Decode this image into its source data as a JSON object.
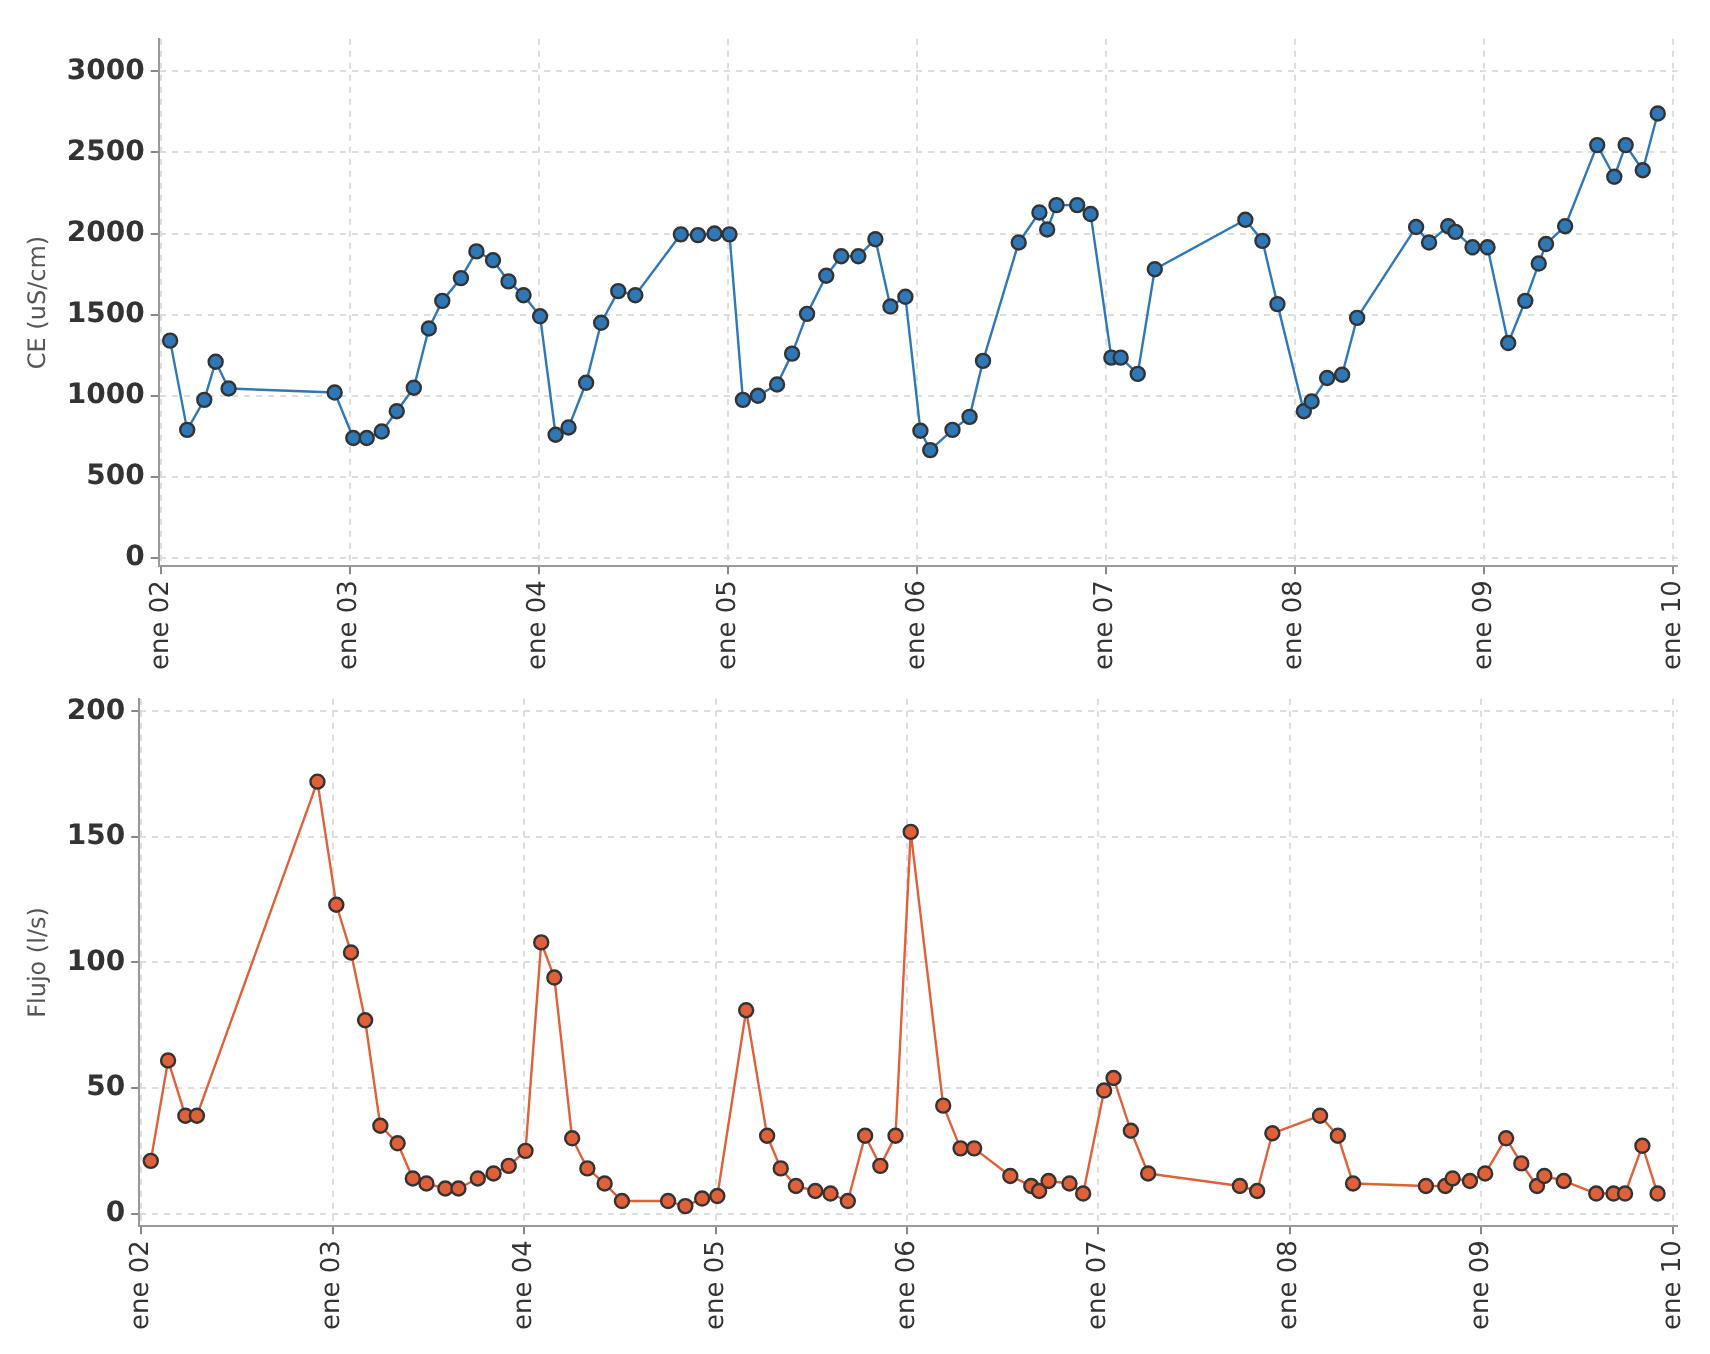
{
  "chart_data": [
    {
      "type": "line",
      "ylabel": "CE (uS/cm)",
      "marker": "circle",
      "line_style": "solid",
      "grid": true,
      "legend": false,
      "xlim": [
        "2001-12-28",
        "2010-01-10"
      ],
      "xticks": [
        {
          "value": "2002-01-01",
          "label": "ene 02"
        },
        {
          "value": "2003-01-01",
          "label": "ene 03"
        },
        {
          "value": "2004-01-01",
          "label": "ene 04"
        },
        {
          "value": "2005-01-01",
          "label": "ene 05"
        },
        {
          "value": "2006-01-01",
          "label": "ene 06"
        },
        {
          "value": "2007-01-01",
          "label": "ene 07"
        },
        {
          "value": "2008-01-01",
          "label": "ene 08"
        },
        {
          "value": "2009-01-01",
          "label": "ene 09"
        },
        {
          "value": "2010-01-01",
          "label": "ene 10"
        }
      ],
      "ylim": [
        -50,
        3200
      ],
      "yticks": [
        0,
        500,
        1000,
        1500,
        2000,
        2500,
        3000
      ],
      "series": [
        {
          "color": "#2f78b8",
          "x": [
            "2002-01-19",
            "2002-02-21",
            "2002-03-26",
            "2002-04-17",
            "2002-05-12",
            "2002-12-03",
            "2003-01-08",
            "2003-02-03",
            "2003-03-04",
            "2003-04-02",
            "2003-05-05",
            "2003-06-03",
            "2003-06-29",
            "2003-08-04",
            "2003-09-03",
            "2003-10-05",
            "2003-11-04",
            "2003-12-03",
            "2004-01-04",
            "2004-02-03",
            "2004-02-28",
            "2004-04-02",
            "2004-05-01",
            "2004-06-03",
            "2004-07-06",
            "2004-10-02",
            "2004-11-04",
            "2004-12-06",
            "2005-01-04",
            "2005-01-30",
            "2005-02-28",
            "2005-04-06",
            "2005-05-05",
            "2005-06-03",
            "2005-07-10",
            "2005-08-08",
            "2005-09-10",
            "2005-10-13",
            "2005-11-11",
            "2005-12-10",
            "2006-01-08",
            "2006-01-27",
            "2006-03-11",
            "2006-04-13",
            "2006-05-09",
            "2006-07-17",
            "2006-08-26",
            "2006-09-10",
            "2006-09-28",
            "2006-11-07",
            "2006-12-03",
            "2007-01-12",
            "2007-01-30",
            "2007-03-04",
            "2007-04-06",
            "2007-09-28",
            "2007-10-31",
            "2007-11-29",
            "2008-01-19",
            "2008-02-03",
            "2008-03-04",
            "2008-04-02",
            "2008-05-01",
            "2008-08-23",
            "2008-09-17",
            "2008-10-24",
            "2008-11-07",
            "2008-12-10",
            "2009-01-08",
            "2009-02-17",
            "2009-03-22",
            "2009-04-17",
            "2009-05-01",
            "2009-06-07",
            "2009-08-08",
            "2009-09-10",
            "2009-10-02",
            "2009-11-04",
            "2009-12-03"
          ],
          "values": [
            1340,
            790,
            975,
            1210,
            1045,
            1020,
            740,
            740,
            780,
            905,
            1050,
            1415,
            1585,
            1725,
            1890,
            1835,
            1705,
            1620,
            1490,
            760,
            805,
            1080,
            1450,
            1645,
            1620,
            1995,
            1990,
            2000,
            1995,
            975,
            1000,
            1070,
            1260,
            1505,
            1740,
            1860,
            1860,
            1965,
            1550,
            1610,
            785,
            665,
            790,
            870,
            1215,
            1945,
            2130,
            2025,
            2175,
            2175,
            2120,
            1235,
            1235,
            1135,
            1780,
            2085,
            1955,
            1565,
            905,
            965,
            1110,
            1130,
            1480,
            2040,
            1945,
            2045,
            2010,
            1915,
            1915,
            1325,
            1585,
            1815,
            1935,
            2045,
            2545,
            2350,
            2545,
            2390,
            2740
          ]
        }
      ]
    },
    {
      "type": "line",
      "ylabel": "Flujo (l/s)",
      "marker": "circle",
      "line_style": "solid",
      "grid": true,
      "legend": false,
      "xlim": [
        "2001-12-28",
        "2010-01-10"
      ],
      "xticks": [
        {
          "value": "2002-01-01",
          "label": "ene 02"
        },
        {
          "value": "2003-01-01",
          "label": "ene 03"
        },
        {
          "value": "2004-01-01",
          "label": "ene 04"
        },
        {
          "value": "2005-01-01",
          "label": "ene 05"
        },
        {
          "value": "2006-01-01",
          "label": "ene 06"
        },
        {
          "value": "2007-01-01",
          "label": "ene 07"
        },
        {
          "value": "2008-01-01",
          "label": "ene 08"
        },
        {
          "value": "2009-01-01",
          "label": "ene 09"
        },
        {
          "value": "2010-01-01",
          "label": "ene 10"
        }
      ],
      "ylim": [
        -5,
        205
      ],
      "yticks": [
        0,
        50,
        100,
        150,
        200
      ],
      "series": [
        {
          "color": "#e0603a",
          "x": [
            "2002-01-19",
            "2002-02-21",
            "2002-03-26",
            "2002-04-17",
            "2002-12-03",
            "2003-01-08",
            "2003-02-05",
            "2003-03-04",
            "2003-04-02",
            "2003-05-05",
            "2003-06-03",
            "2003-06-29",
            "2003-08-04",
            "2003-08-29",
            "2003-10-05",
            "2003-11-04",
            "2003-12-03",
            "2004-01-04",
            "2004-02-03",
            "2004-02-28",
            "2004-04-02",
            "2004-05-01",
            "2004-06-03",
            "2004-07-06",
            "2004-10-02",
            "2004-11-04",
            "2004-12-06",
            "2005-01-04",
            "2005-02-28",
            "2005-04-09",
            "2005-05-05",
            "2005-06-03",
            "2005-07-10",
            "2005-08-08",
            "2005-09-10",
            "2005-10-13",
            "2005-11-11",
            "2005-12-10",
            "2006-01-08",
            "2006-03-11",
            "2006-04-13",
            "2006-05-09",
            "2006-07-17",
            "2006-08-26",
            "2006-09-10",
            "2006-09-28",
            "2006-11-07",
            "2006-12-03",
            "2007-01-12",
            "2007-01-30",
            "2007-03-04",
            "2007-04-06",
            "2007-09-28",
            "2007-10-31",
            "2007-11-29",
            "2008-02-28",
            "2008-04-02",
            "2008-05-01",
            "2008-09-17",
            "2008-10-24",
            "2008-11-07",
            "2008-12-10",
            "2009-01-08",
            "2009-02-17",
            "2009-03-18",
            "2009-04-17",
            "2009-05-01",
            "2009-06-07",
            "2009-08-08",
            "2009-09-10",
            "2009-10-02",
            "2009-11-04",
            "2009-12-03"
          ],
          "values": [
            21,
            61,
            39,
            39,
            172,
            123,
            104,
            77,
            35,
            28,
            14,
            12,
            10,
            10,
            14,
            16,
            19,
            25,
            108,
            94,
            30,
            18,
            12,
            5,
            5,
            3,
            6,
            7,
            81,
            31,
            18,
            11,
            9,
            8,
            5,
            31,
            19,
            31,
            152,
            43,
            26,
            26,
            15,
            11,
            9,
            13,
            12,
            8,
            49,
            54,
            33,
            16,
            11,
            9,
            32,
            39,
            31,
            12,
            11,
            11,
            14,
            13,
            16,
            30,
            20,
            11,
            15,
            13,
            8,
            8,
            8,
            27,
            8
          ]
        }
      ]
    }
  ]
}
